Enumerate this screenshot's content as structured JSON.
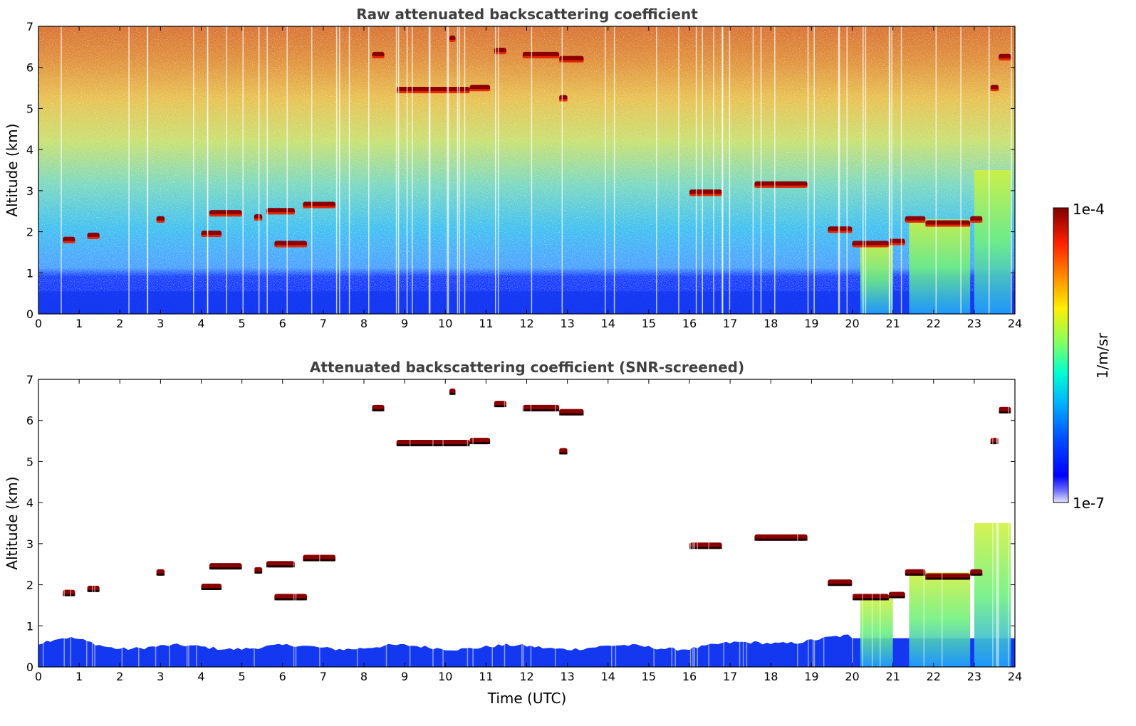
{
  "chart_data": [
    {
      "type": "heatmap",
      "title": "Raw attenuated backscattering coefficient",
      "xlabel": "",
      "ylabel": "Altitude (km)",
      "xlim": [
        0,
        24
      ],
      "ylim": [
        0,
        7
      ],
      "x_ticks": [
        "0",
        "1",
        "2",
        "3",
        "4",
        "5",
        "6",
        "7",
        "8",
        "9",
        "10",
        "11",
        "12",
        "13",
        "14",
        "15",
        "16",
        "17",
        "18",
        "19",
        "20",
        "21",
        "22",
        "23",
        "24"
      ],
      "y_ticks": [
        "0",
        "1",
        "2",
        "3",
        "4",
        "5",
        "6",
        "7"
      ],
      "screened": false,
      "grid": false,
      "boundary_layer_km": [
        0,
        0.55
      ],
      "cloud_layers": [
        {
          "t0": 0.6,
          "t1": 0.9,
          "alt": 1.8
        },
        {
          "t0": 1.2,
          "t1": 1.5,
          "alt": 1.9
        },
        {
          "t0": 2.9,
          "t1": 3.1,
          "alt": 2.3
        },
        {
          "t0": 4.0,
          "t1": 4.5,
          "alt": 1.95
        },
        {
          "t0": 4.2,
          "t1": 5.0,
          "alt": 2.45
        },
        {
          "t0": 5.3,
          "t1": 5.5,
          "alt": 2.35
        },
        {
          "t0": 5.6,
          "t1": 6.3,
          "alt": 2.5
        },
        {
          "t0": 5.8,
          "t1": 6.6,
          "alt": 1.7
        },
        {
          "t0": 6.5,
          "t1": 7.3,
          "alt": 2.65
        },
        {
          "t0": 8.2,
          "t1": 8.5,
          "alt": 6.3
        },
        {
          "t0": 8.8,
          "t1": 10.6,
          "alt": 5.45
        },
        {
          "t0": 10.6,
          "t1": 11.1,
          "alt": 5.5
        },
        {
          "t0": 11.2,
          "t1": 11.5,
          "alt": 6.4
        },
        {
          "t0": 11.9,
          "t1": 12.8,
          "alt": 6.3
        },
        {
          "t0": 12.8,
          "t1": 13.4,
          "alt": 6.2
        },
        {
          "t0": 12.8,
          "t1": 13.0,
          "alt": 5.25
        },
        {
          "t0": 10.1,
          "t1": 10.25,
          "alt": 6.7
        },
        {
          "t0": 16.0,
          "t1": 16.8,
          "alt": 2.95
        },
        {
          "t0": 17.6,
          "t1": 18.9,
          "alt": 3.15
        },
        {
          "t0": 19.4,
          "t1": 20.0,
          "alt": 2.05
        },
        {
          "t0": 20.0,
          "t1": 20.9,
          "alt": 1.7
        },
        {
          "t0": 20.9,
          "t1": 21.3,
          "alt": 1.75
        },
        {
          "t0": 21.3,
          "t1": 21.8,
          "alt": 2.3
        },
        {
          "t0": 21.8,
          "t1": 22.9,
          "alt": 2.2
        },
        {
          "t0": 22.9,
          "t1": 23.2,
          "alt": 2.3
        },
        {
          "t0": 23.4,
          "t1": 23.6,
          "alt": 5.5
        },
        {
          "t0": 23.6,
          "t1": 23.9,
          "alt": 6.25
        }
      ],
      "precip_columns": [
        {
          "t0": 20.2,
          "t1": 21.0,
          "top": 1.7
        },
        {
          "t0": 21.4,
          "t1": 22.9,
          "top": 2.3
        },
        {
          "t0": 23.0,
          "t1": 23.9,
          "top": 3.5
        }
      ]
    },
    {
      "type": "heatmap",
      "title": "Attenuated backscattering coefficient (SNR-screened)",
      "xlabel": "Time (UTC)",
      "ylabel": "Altitude (km)",
      "xlim": [
        0,
        24
      ],
      "ylim": [
        0,
        7
      ],
      "x_ticks": [
        "0",
        "1",
        "2",
        "3",
        "4",
        "5",
        "6",
        "7",
        "8",
        "9",
        "10",
        "11",
        "12",
        "13",
        "14",
        "15",
        "16",
        "17",
        "18",
        "19",
        "20",
        "21",
        "22",
        "23",
        "24"
      ],
      "y_ticks": [
        "0",
        "1",
        "2",
        "3",
        "4",
        "5",
        "6",
        "7"
      ],
      "screened": true,
      "grid": false,
      "boundary_layer_km": [
        0,
        0.75
      ]
    }
  ],
  "colorbar": {
    "label": "1/m/sr",
    "max_label": "1e-4",
    "min_label": "1e-7",
    "colormap": "jet",
    "scale": "log",
    "range": [
      1e-07,
      0.0001
    ]
  },
  "colors": {
    "axis": "#000000",
    "title": "#404040",
    "jet_low": "#00007f",
    "jet_high": "#7f0000"
  }
}
